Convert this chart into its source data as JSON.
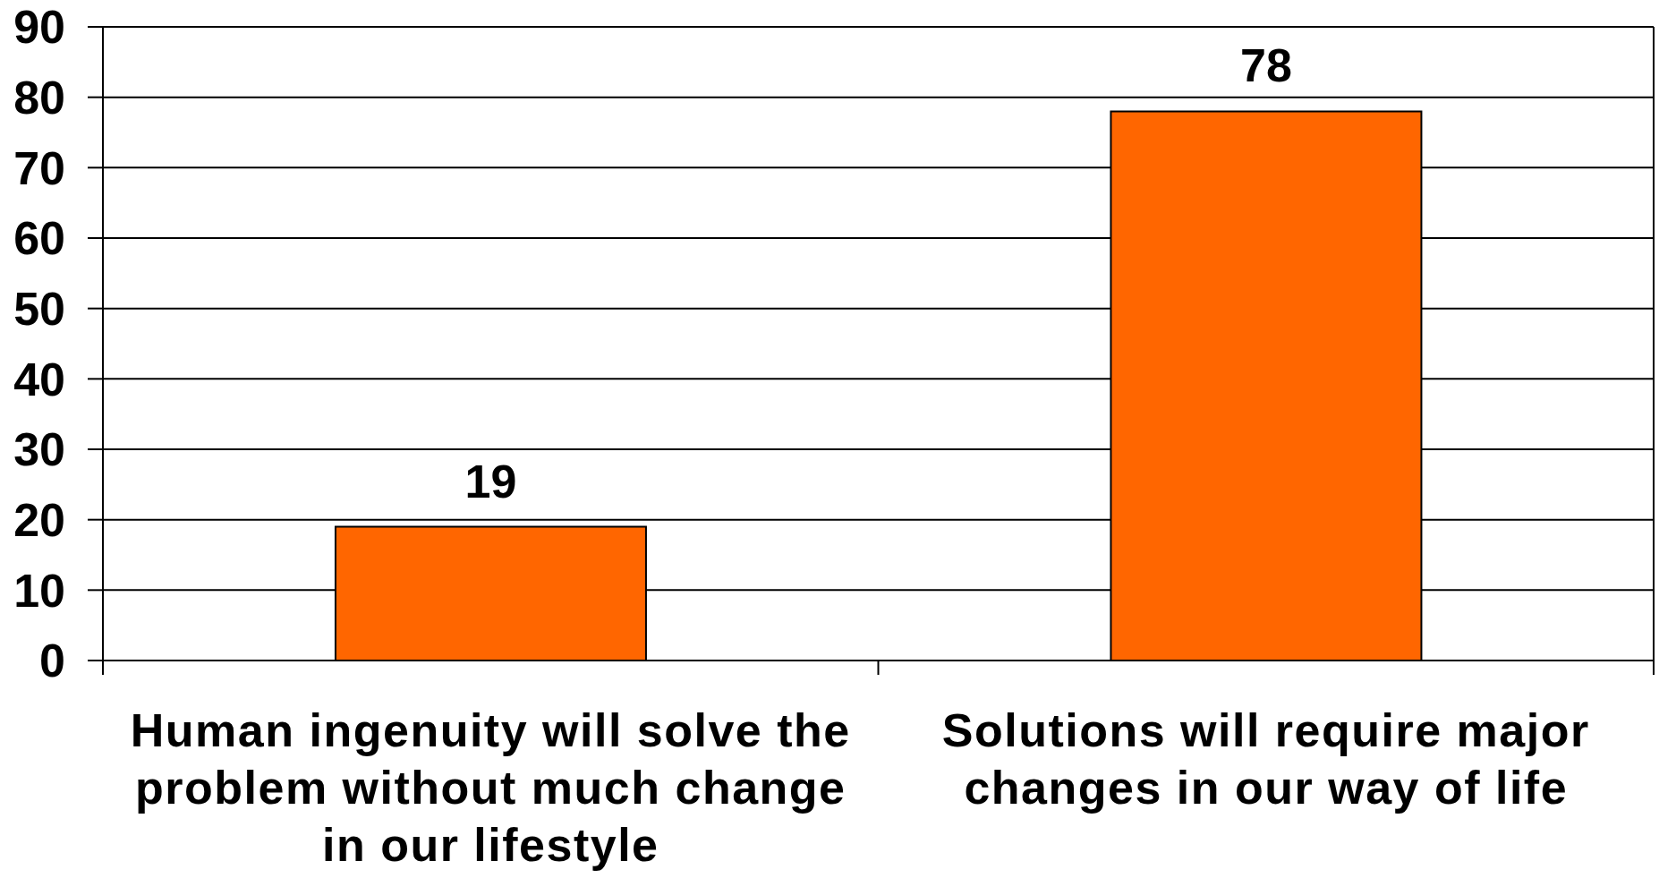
{
  "chart_data": {
    "type": "bar",
    "categories": [
      "Human ingenuity will solve the problem without much change in our lifestyle",
      "Solutions will require major changes in our way of life"
    ],
    "values": [
      19,
      78
    ],
    "color": "#ff6600",
    "ylim": [
      0,
      90
    ],
    "yticks": [
      0,
      10,
      20,
      30,
      40,
      50,
      60,
      70,
      80,
      90
    ],
    "grid": "y",
    "data_labels": true
  }
}
